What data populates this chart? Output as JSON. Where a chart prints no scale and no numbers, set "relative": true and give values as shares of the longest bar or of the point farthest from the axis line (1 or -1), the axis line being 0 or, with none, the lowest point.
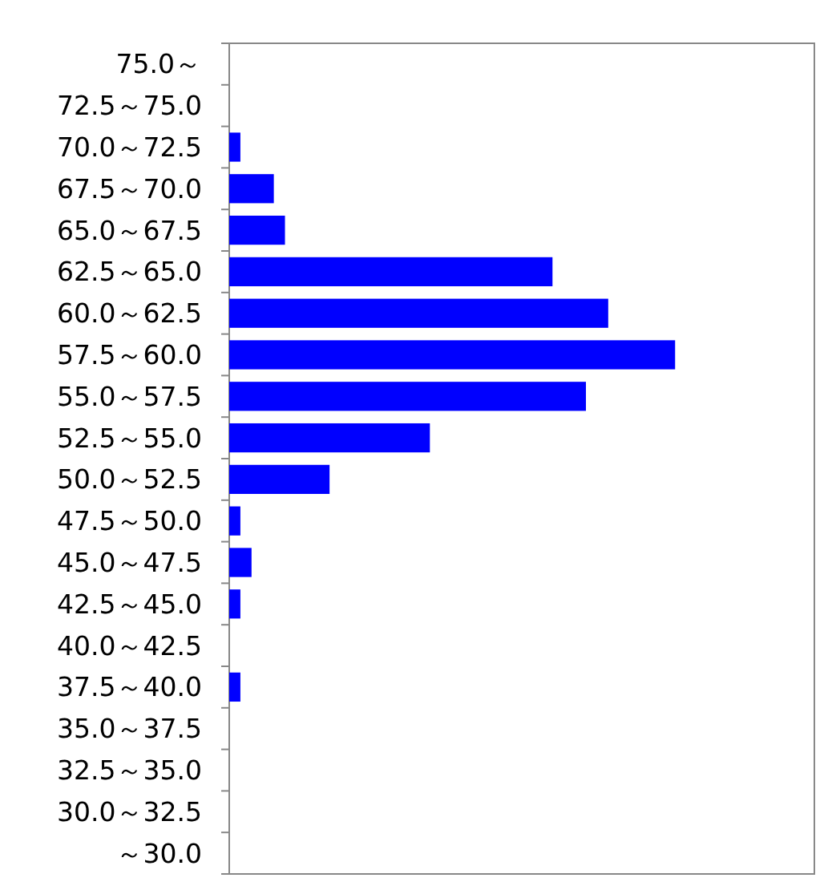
{
  "chart_data": {
    "type": "bar",
    "orientation": "horizontal",
    "relative": true,
    "categories": [
      "75.0～",
      "72.5～75.0",
      "70.0～72.5",
      "67.5～70.0",
      "65.0～67.5",
      "62.5～65.0",
      "60.0～62.5",
      "57.5～60.0",
      "55.0～57.5",
      "52.5～55.0",
      "50.0～52.5",
      "47.5～50.0",
      "45.0～47.5",
      "42.5～45.0",
      "40.0～42.5",
      "37.5～40.0",
      "35.0～37.5",
      "32.5～35.0",
      "30.0～32.5",
      "～30.0"
    ],
    "values": [
      0,
      0,
      0.025,
      0.1,
      0.125,
      0.725,
      0.85,
      1,
      0.8,
      0.45,
      0.225,
      0.025,
      0.05,
      0.025,
      0,
      0.025,
      0,
      0,
      0,
      0
    ],
    "color": "#0000ff",
    "grid": false
  }
}
